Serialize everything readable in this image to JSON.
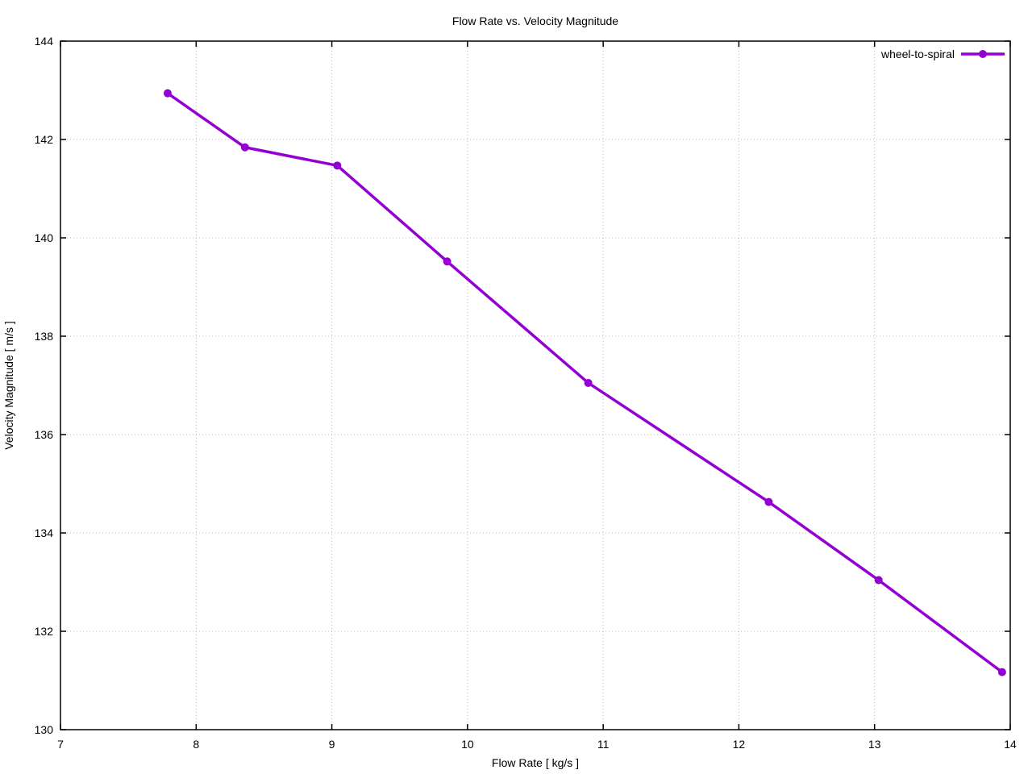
{
  "title": "Flow Rate vs. Velocity Magnitude",
  "chart_data": {
    "type": "line",
    "title": "Flow Rate vs. Velocity Magnitude",
    "xlabel": "Flow Rate [ kg/s ]",
    "ylabel": "Velocity Magnitude [ m/s ]",
    "xlim": [
      7,
      14
    ],
    "ylim": [
      130,
      144
    ],
    "xticks": [
      7,
      8,
      9,
      10,
      11,
      12,
      13,
      14
    ],
    "yticks": [
      130,
      132,
      134,
      136,
      138,
      140,
      142,
      144
    ],
    "grid": true,
    "grid_style": "dotted",
    "legend_position": "top-right-inside",
    "background_color": "#ffffff",
    "border_color": "#000000",
    "grid_color": "#b8b8b8",
    "series": [
      {
        "name": "wheel-to-spiral",
        "color": "#9400d3",
        "marker": "circle",
        "line_width": 3.5,
        "x": [
          7.79,
          8.36,
          9.04,
          9.85,
          10.89,
          12.22,
          13.03,
          13.94
        ],
        "y": [
          142.94,
          141.84,
          141.47,
          139.52,
          137.05,
          134.63,
          133.04,
          131.17
        ]
      }
    ]
  }
}
